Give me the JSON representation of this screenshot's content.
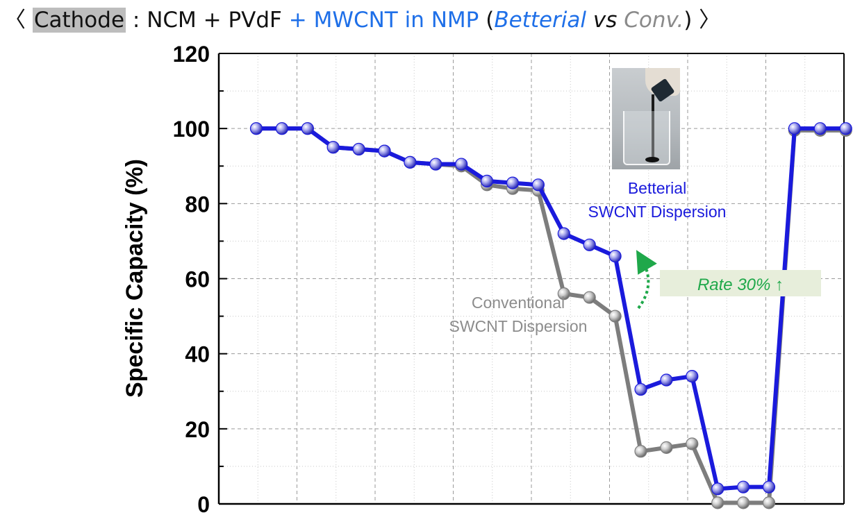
{
  "heading": {
    "open_bracket": "〈",
    "cathode": "Cathode",
    "colon": ":",
    "formula": "NCM + PVdF",
    "additive": "+ MWCNT in NMP",
    "paren_open": "(",
    "betterial": "Betterial",
    "vs": "vs",
    "conv": "Conv.",
    "paren_close": ")",
    "close_bracket": "〉"
  },
  "chart_data": {
    "type": "line",
    "ylabel": "Specific Capacity (%)",
    "ylim": [
      0,
      120
    ],
    "yticks": [
      0,
      20,
      40,
      60,
      80,
      100,
      120
    ],
    "grid": true,
    "x": [
      1,
      2,
      3,
      4,
      5,
      6,
      7,
      8,
      9,
      10,
      11,
      12,
      13,
      14,
      15,
      16,
      17,
      18,
      19,
      20,
      21,
      22,
      23,
      24
    ],
    "series": [
      {
        "color": "#7d7d7d",
        "values": [
          100,
          100,
          100,
          95,
          94.5,
          94,
          91,
          90.5,
          90,
          85,
          84,
          83.5,
          56,
          55,
          50,
          14,
          15,
          16,
          0.3,
          0.3,
          0.3,
          99.5,
          99.5,
          99.5
        ]
      },
      {
        "color": "#1a1adc",
        "values": [
          100,
          100,
          100,
          95,
          94.5,
          94,
          91,
          90.5,
          90.5,
          86,
          85.5,
          85,
          72,
          69,
          66,
          30.5,
          33,
          34,
          4,
          4.5,
          4.5,
          100,
          100,
          100
        ]
      }
    ],
    "annotations": {
      "betterial_line1": "Betterial",
      "betterial_line2": "SWCNT Dispersion",
      "conventional_line1": "Conventional",
      "conventional_line2": "SWCNT Dispersion",
      "rate": "Rate 30% ↑"
    }
  },
  "colors": {
    "betterial": "#1a1adc",
    "conventional": "#7d7d7d",
    "rate_text": "#1fa84a",
    "rate_box": "#e7eedb"
  }
}
